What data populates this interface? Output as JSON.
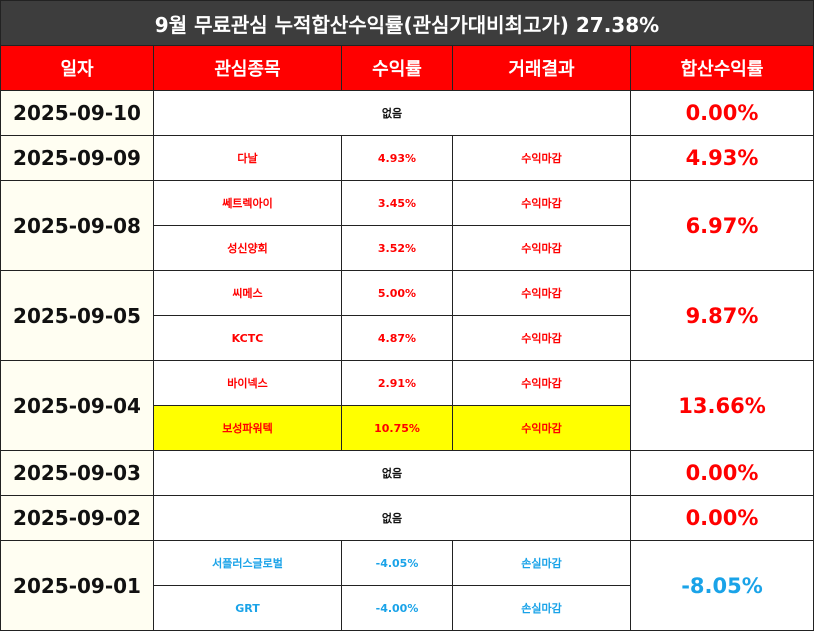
{
  "title": "9월 무료관심 누적합산수익률(관심가대비최고가) 27.38%",
  "headers": {
    "date": "일자",
    "stock": "관심종목",
    "return": "수익률",
    "result": "거래결과",
    "total": "합산수익률"
  },
  "rows": [
    {
      "date": "2025-09-10",
      "none": "없음",
      "total": "0.00%"
    },
    {
      "date": "2025-09-09",
      "total": "4.93%",
      "items": [
        {
          "stock": "다날",
          "return": "4.93%",
          "result": "수익마감"
        }
      ]
    },
    {
      "date": "2025-09-08",
      "total": "6.97%",
      "items": [
        {
          "stock": "쎄트렉아이",
          "return": "3.45%",
          "result": "수익마감"
        },
        {
          "stock": "성신양회",
          "return": "3.52%",
          "result": "수익마감"
        }
      ]
    },
    {
      "date": "2025-09-05",
      "total": "9.87%",
      "items": [
        {
          "stock": "씨메스",
          "return": "5.00%",
          "result": "수익마감"
        },
        {
          "stock": "KCTC",
          "return": "4.87%",
          "result": "수익마감"
        }
      ]
    },
    {
      "date": "2025-09-04",
      "total": "13.66%",
      "items": [
        {
          "stock": "바이넥스",
          "return": "2.91%",
          "result": "수익마감"
        },
        {
          "stock": "보성파워텍",
          "return": "10.75%",
          "result": "수익마감"
        }
      ]
    },
    {
      "date": "2025-09-03",
      "none": "없음",
      "total": "0.00%"
    },
    {
      "date": "2025-09-02",
      "none": "없음",
      "total": "0.00%"
    },
    {
      "date": "2025-09-01",
      "total": "-8.05%",
      "items": [
        {
          "stock": "서플러스글로벌",
          "return": "-4.05%",
          "result": "손실마감"
        },
        {
          "stock": "GRT",
          "return": "-4.00%",
          "result": "손실마감"
        }
      ]
    }
  ],
  "colors": {
    "profit": "#ff0000",
    "loss": "#1aa3e8",
    "highlight": "#ffff00",
    "header": "#ff0000",
    "title_bg": "#3d3d3d"
  }
}
